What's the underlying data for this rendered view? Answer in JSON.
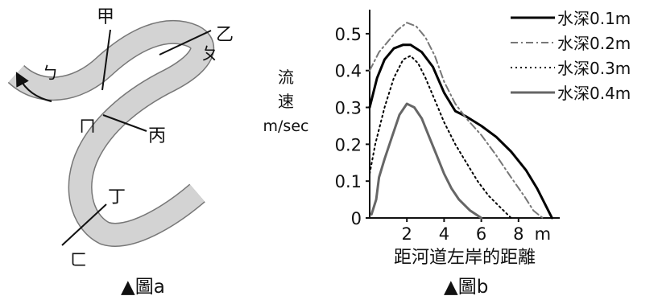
{
  "figure_a": {
    "caption": "▲圖a",
    "section_labels": {
      "jia": "甲",
      "yi": "乙",
      "bing": "丙",
      "ding": "丁"
    },
    "bank_labels": {
      "b": "ㄅ",
      "p": "ㄆ",
      "m": "ㄇ",
      "f": "ㄈ"
    }
  },
  "figure_b": {
    "caption": "▲圖b"
  },
  "chart_data": {
    "type": "line",
    "xlabel": "距河道左岸的距離",
    "ylabel_lines": [
      "流",
      "速",
      "m/sec"
    ],
    "xticks": [
      "2",
      "4",
      "6",
      "8",
      "m"
    ],
    "yticks": [
      "0",
      "0.1",
      "0.2",
      "0.3",
      "0.4",
      "0.5"
    ],
    "xlim": [
      0,
      10
    ],
    "ylim": [
      0,
      0.55
    ],
    "legend_position": "top-right",
    "series": [
      {
        "name": "水深0.1m",
        "color": "#000000",
        "dash": "solid",
        "width": 3,
        "x": [
          0,
          0.4,
          0.8,
          1.3,
          1.8,
          2.2,
          2.8,
          3.4,
          4.0,
          4.6,
          5.2,
          6.0,
          6.8,
          7.6,
          8.4,
          9.0,
          9.5,
          9.8
        ],
        "y": [
          0.3,
          0.38,
          0.43,
          0.46,
          0.47,
          0.47,
          0.45,
          0.41,
          0.34,
          0.29,
          0.275,
          0.25,
          0.22,
          0.18,
          0.13,
          0.08,
          0.03,
          0.0
        ]
      },
      {
        "name": "水深0.2m",
        "color": "#777777",
        "dash": "dashdot",
        "width": 2,
        "x": [
          0,
          0.5,
          1.0,
          1.5,
          2.0,
          2.5,
          3.0,
          3.5,
          4.0,
          4.6,
          5.2,
          6.0,
          6.8,
          7.6,
          8.3,
          8.8,
          9.3
        ],
        "y": [
          0.4,
          0.45,
          0.48,
          0.51,
          0.53,
          0.52,
          0.49,
          0.44,
          0.37,
          0.31,
          0.27,
          0.225,
          0.17,
          0.11,
          0.06,
          0.02,
          0.0
        ]
      },
      {
        "name": "水深0.3m",
        "color": "#000000",
        "dash": "dotted",
        "width": 2,
        "x": [
          0,
          0.3,
          0.8,
          1.3,
          1.8,
          2.2,
          2.6,
          3.0,
          3.5,
          4.0,
          4.6,
          5.2,
          5.8,
          6.4,
          7.0,
          7.6
        ],
        "y": [
          0.12,
          0.2,
          0.3,
          0.38,
          0.43,
          0.44,
          0.42,
          0.38,
          0.32,
          0.26,
          0.2,
          0.15,
          0.1,
          0.06,
          0.03,
          0.0
        ]
      },
      {
        "name": "水深0.4m",
        "color": "#666666",
        "dash": "solid",
        "width": 3,
        "x": [
          0.1,
          0.35,
          0.5,
          0.8,
          1.2,
          1.6,
          2.0,
          2.4,
          2.8,
          3.2,
          3.6,
          4.0,
          4.4,
          4.8,
          5.4,
          6.0
        ],
        "y": [
          0.01,
          0.05,
          0.11,
          0.16,
          0.22,
          0.28,
          0.31,
          0.3,
          0.27,
          0.22,
          0.17,
          0.12,
          0.08,
          0.05,
          0.02,
          0.0
        ]
      }
    ]
  }
}
